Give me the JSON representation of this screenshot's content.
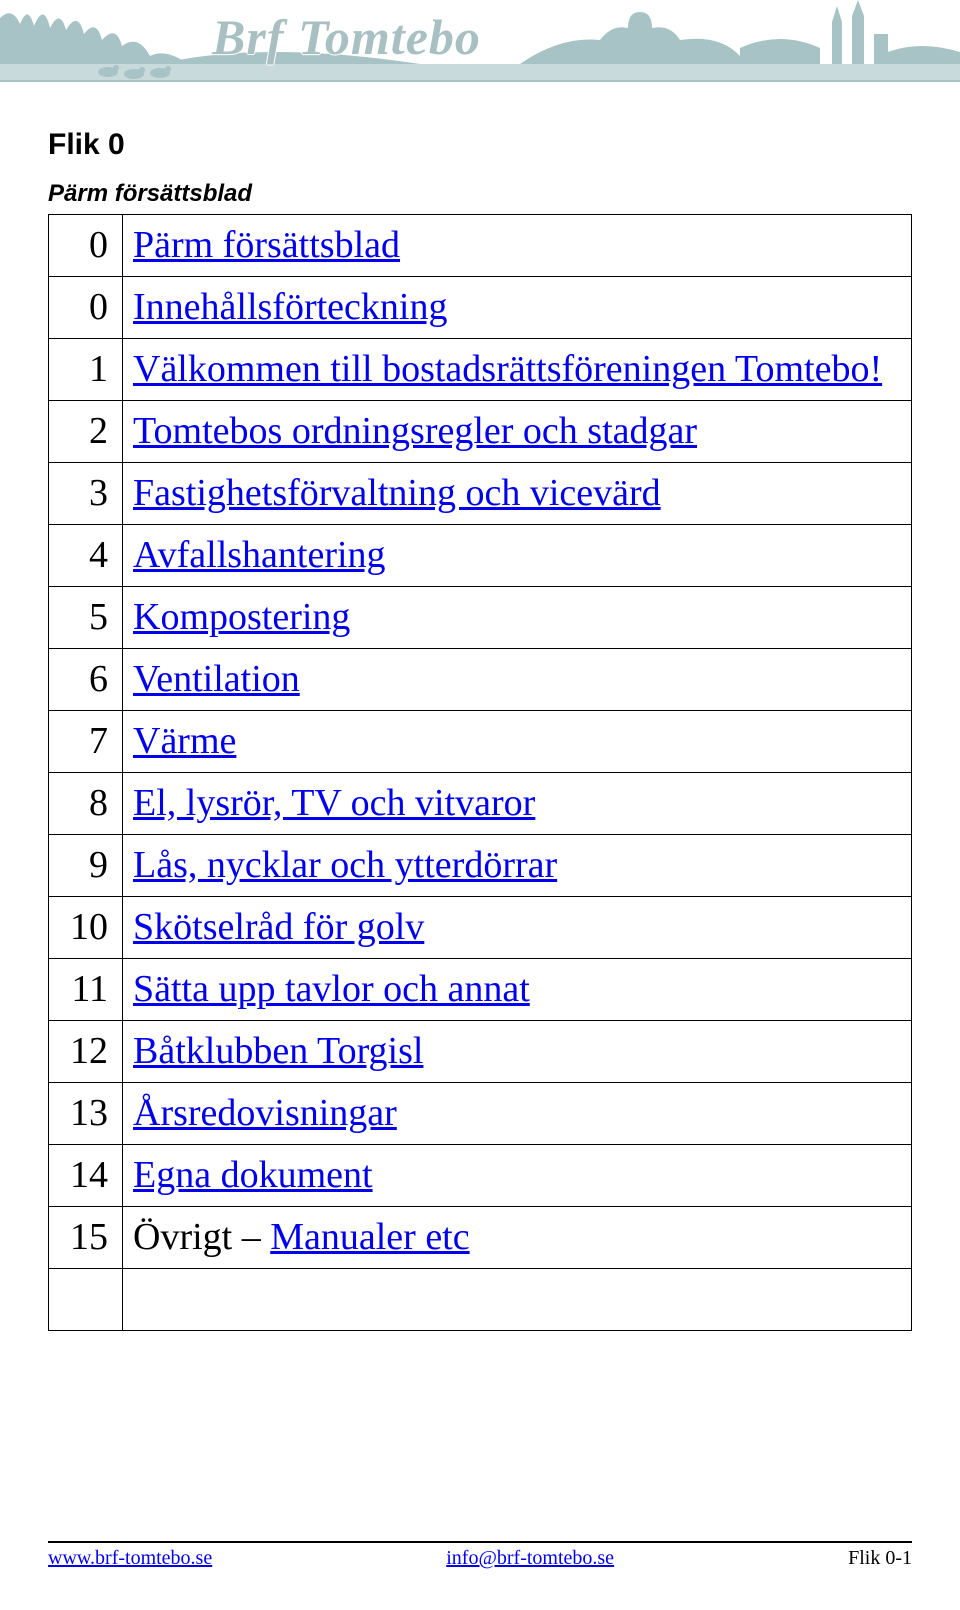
{
  "banner": {
    "title": "Brf Tomtebo",
    "silhouette_color": "#a8c3c5",
    "water_color": "#c8dadc",
    "title_color": "#a9c0c2"
  },
  "heading": "Flik 0",
  "subtitle": "Pärm försättsblad",
  "link_color": "#0000ee",
  "table_font_size_pt": 29,
  "toc": [
    {
      "num": "0",
      "label": "Pärm försättsblad",
      "link": true
    },
    {
      "num": "0",
      "label": "Innehållsförteckning",
      "link": true
    },
    {
      "num": "1",
      "label": "Välkommen till bostadsrättsföreningen Tomtebo!",
      "link": true
    },
    {
      "num": "2",
      "label": "Tomtebos ordningsregler och stadgar",
      "link": true
    },
    {
      "num": "3",
      "label": "Fastighetsförvaltning och vicevärd",
      "link": true
    },
    {
      "num": "4",
      "label": "Avfallshantering",
      "link": true
    },
    {
      "num": "5",
      "label": "Kompostering",
      "link": true
    },
    {
      "num": "6",
      "label": "Ventilation",
      "link": true
    },
    {
      "num": "7",
      "label": "Värme",
      "link": true
    },
    {
      "num": "8",
      "label": "El, lysrör, TV och vitvaror",
      "link": true
    },
    {
      "num": "9",
      "label": "Lås, nycklar och ytterdörrar",
      "link": true
    },
    {
      "num": "10",
      "label": "Skötselråd för golv",
      "link": true
    },
    {
      "num": "11",
      "label": "Sätta upp tavlor och annat",
      "link": true
    },
    {
      "num": "12",
      "label": "Båtklubben Torgisl",
      "link": true
    },
    {
      "num": "13",
      "label": "Årsredovisningar",
      "link": true
    },
    {
      "num": "14",
      "label": "Egna dokument",
      "link": true
    },
    {
      "num": "15",
      "label_prefix": "Övrigt – ",
      "label": "Manualer etc",
      "link": true,
      "has_prefix": true
    }
  ],
  "toc_trailing_empty_rows": 1,
  "footer": {
    "left": "www.brf-tomtebo.se",
    "center": "info@brf-tomtebo.se",
    "right": "Flik 0-1"
  }
}
